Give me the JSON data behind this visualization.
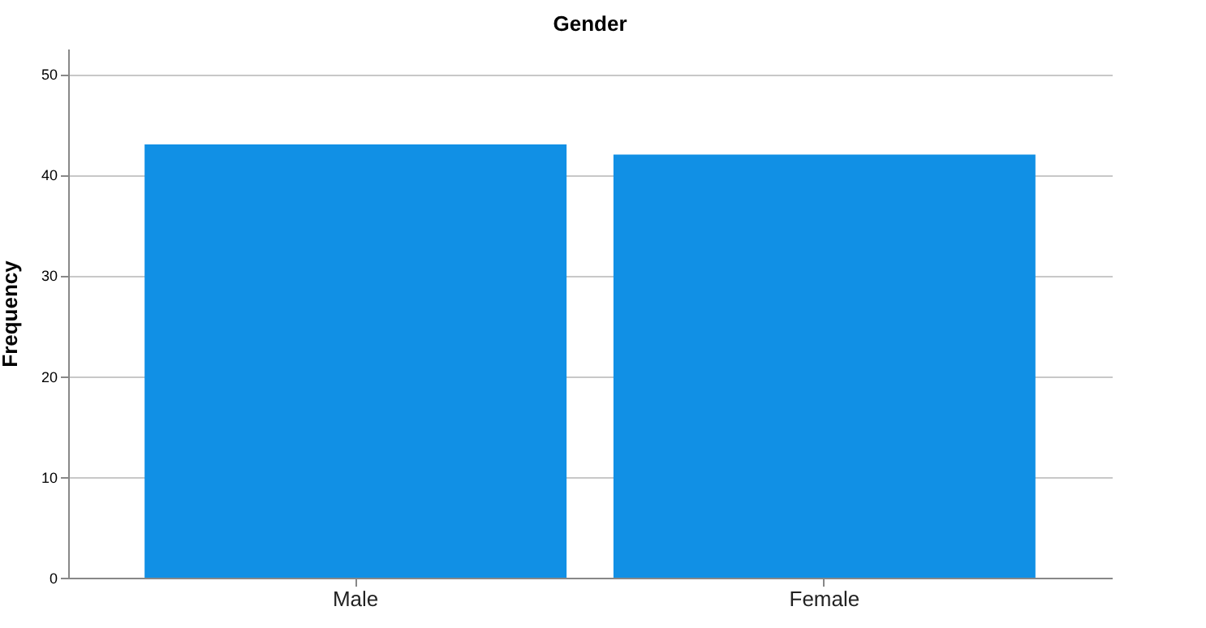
{
  "chart_data": {
    "type": "bar",
    "title": "Gender",
    "ylabel": "Frequency",
    "categories": [
      "Male",
      "Female"
    ],
    "values": [
      43,
      42
    ],
    "color": "#1190e5",
    "ylim": [
      0,
      52.5
    ],
    "yticks": [
      0,
      10,
      20,
      30,
      40,
      50
    ],
    "grid": "y"
  }
}
